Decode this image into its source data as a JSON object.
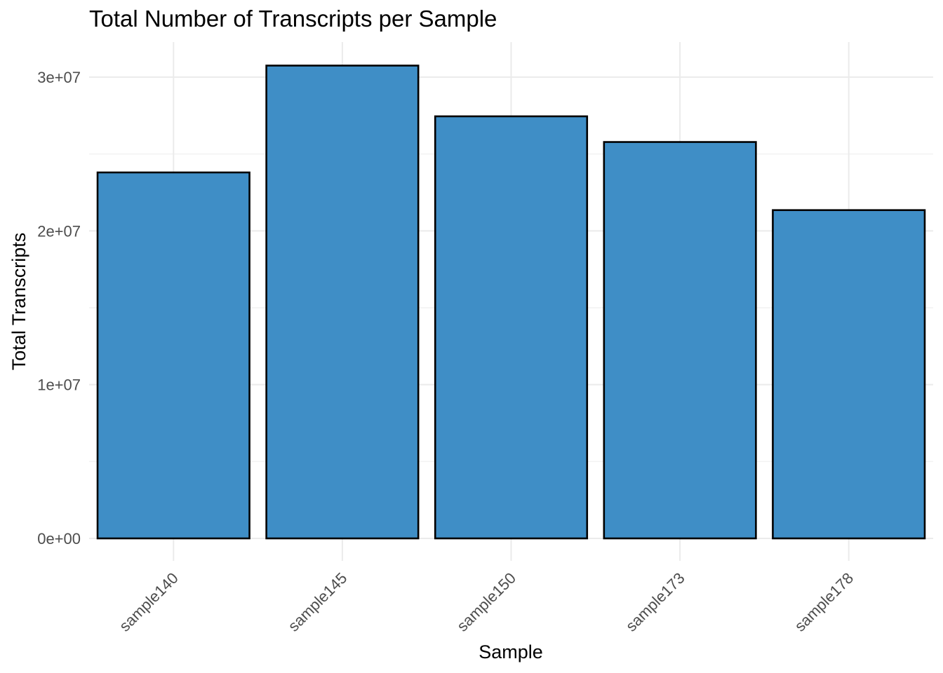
{
  "chart_data": {
    "type": "bar",
    "title": "Total Number of Transcripts per Sample",
    "xlabel": "Sample",
    "ylabel": "Total Transcripts",
    "categories": [
      "sample140",
      "sample145",
      "sample150",
      "sample173",
      "sample178"
    ],
    "values": [
      23800000,
      30750000,
      27450000,
      25780000,
      21350000
    ],
    "ylim": [
      -1500000,
      32200000
    ],
    "yticks": [
      0,
      10000000,
      20000000,
      30000000
    ],
    "ytick_labels": [
      "0e+00",
      "1e+07",
      "2e+07",
      "3e+07"
    ],
    "grid": true,
    "bar_color": "#3f8ec6",
    "bar_border_color": "#000000"
  }
}
